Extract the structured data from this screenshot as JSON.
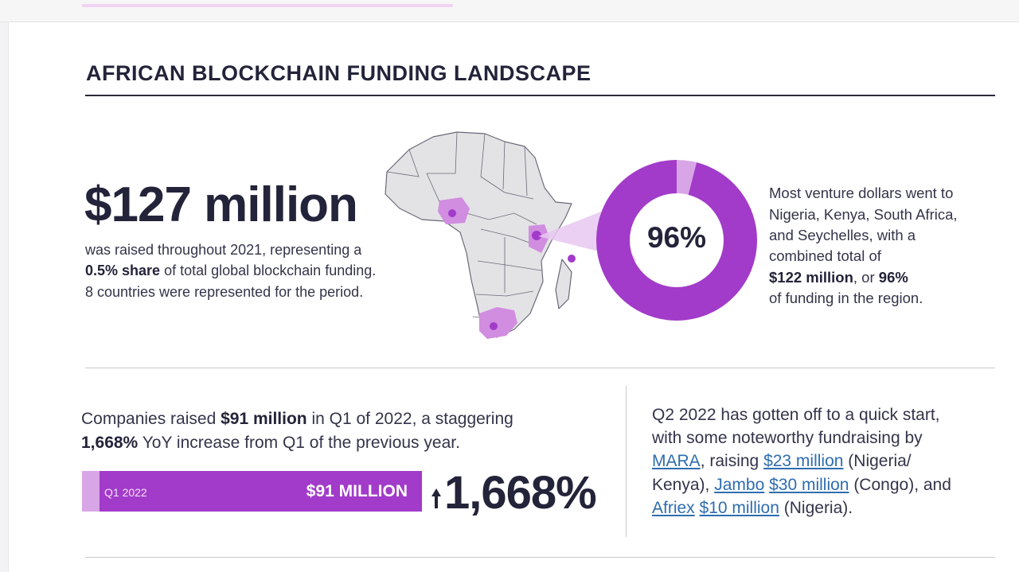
{
  "header": {
    "title": "AFRICAN BLOCKCHAIN FUNDING LANDSCAPE"
  },
  "summary": {
    "amount": "$127 million",
    "line1": "was raised throughout 2021, representing a",
    "line2_bold": "0.5% share",
    "line2_rest": " of total global blockchain funding.",
    "line3": "8 countries were represented for the period."
  },
  "map": {
    "highlighted_countries": [
      "Nigeria",
      "Kenya",
      "South Africa",
      "Seychelles"
    ],
    "highlight_color": "#d18de0",
    "dot_color": "#a23bc9"
  },
  "donut": {
    "percent_label": "96%",
    "value": 96,
    "main_color": "#a23bc9",
    "rest_color": "#d8a6e6"
  },
  "concentration": {
    "line1": "Most venture dollars went to",
    "line2": "Nigeria, Kenya, South Africa,",
    "line3": "and Seychelles, with a",
    "line4": "combined total of",
    "amount_bold": "$122 million",
    "mid": ", or ",
    "pct_bold": "96%",
    "line6": "of funding in the region."
  },
  "q1": {
    "pre": "Companies raised ",
    "amount_bold": "$91 million",
    "post": " in Q1 of 2022, a staggering",
    "pct_bold": "1,668%",
    "line2_rest": " YoY increase from Q1 of the previous year.",
    "bar_label": "Q1 2022",
    "bar_value": "$91 MILLION",
    "growth": "1,668%"
  },
  "q2": {
    "line1": "Q2 2022 has gotten off to a quick start,",
    "line2": "with some noteworthy fundraising by",
    "mara": "MARA",
    "raising": ", raising ",
    "mara_amount": "$23 million",
    "mara_country": " (Nigeria/",
    "kenya_close": "Kenya), ",
    "jambo": "Jambo",
    "jambo_amount": "$30 million",
    "jambo_country": " (Congo),  and",
    "afriex": "Afriex",
    "afriex_amount": "$10 million",
    "afriex_country": " (Nigeria)."
  },
  "colors": {
    "accent": "#a23bc9",
    "accent_light": "#d8a6e6",
    "text_dark": "#23233a",
    "link": "#2e6db0"
  }
}
